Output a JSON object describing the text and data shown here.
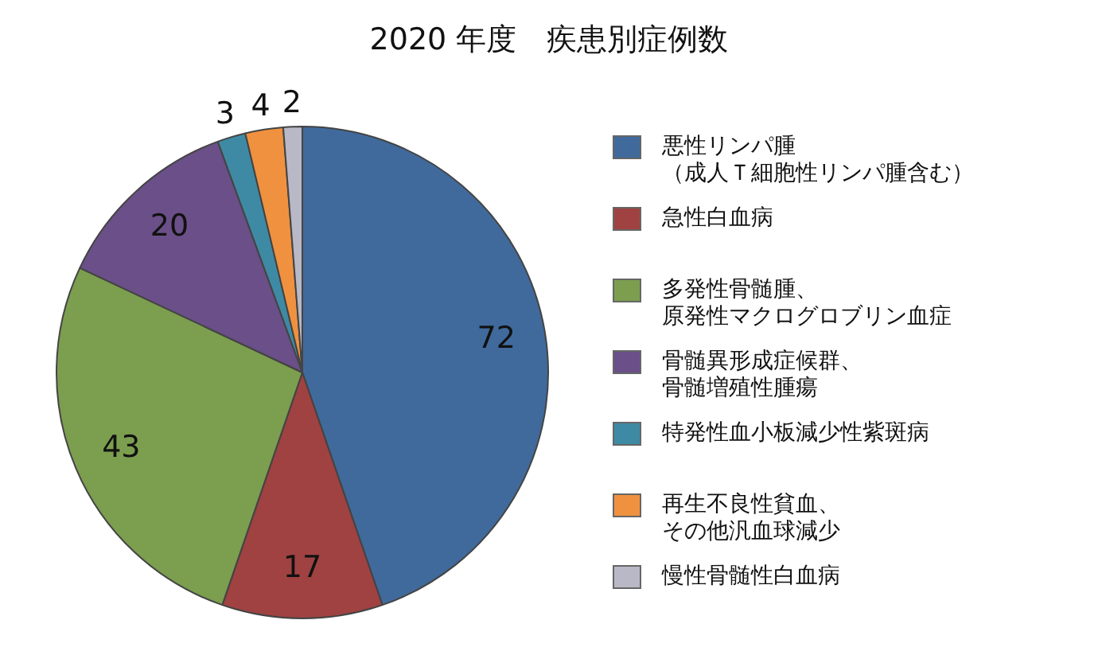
{
  "chart_data": {
    "type": "pie",
    "title": "2020 年度　疾患別症例数",
    "categories": [
      "悪性リンパ腫（成人Ｔ細胞性リンパ腫含む）",
      "急性白血病",
      "多発性骨髄腫、原発性マクログロブリン血症",
      "骨髄異形成症候群、骨髄増殖性腫瘍",
      "特発性血小板減少性紫斑病",
      "再生不良性貧血、その他汎血球減少",
      "慢性骨髄性白血病"
    ],
    "values": [
      72,
      17,
      43,
      20,
      3,
      4,
      2
    ],
    "colors": [
      "#406a9c",
      "#9f4241",
      "#7c9e4f",
      "#6a4f88",
      "#3e8aa4",
      "#f0913f",
      "#b8b8c6"
    ],
    "data_labels": true,
    "legend": "right"
  }
}
